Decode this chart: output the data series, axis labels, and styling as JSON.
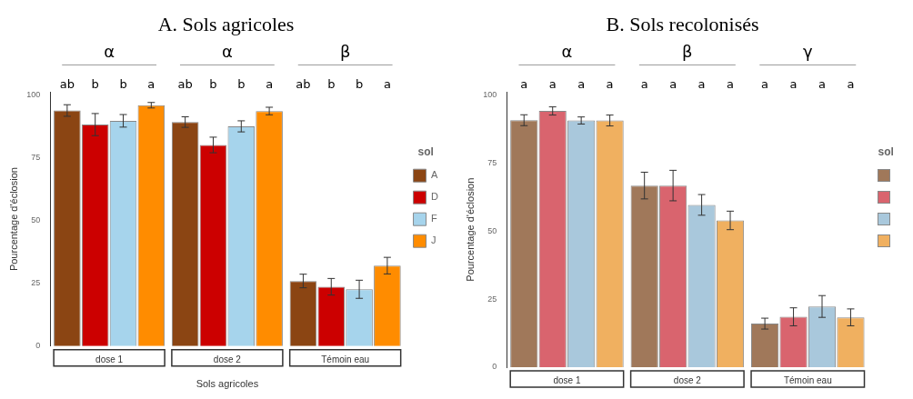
{
  "chart_data": [
    {
      "type": "bar",
      "title": "A. Sols agricoles",
      "xlabel": "Sols agricoles",
      "ylabel": "Pourcentage d'éclosion",
      "legend_title": "sol",
      "categories": [
        "dose 1",
        "dose 2",
        "Témoin eau"
      ],
      "series": [
        {
          "name": "A",
          "color": "#8b4513",
          "values": [
            93.7,
            89.1,
            25.9
          ],
          "errors": [
            2.3,
            2.1,
            2.7
          ]
        },
        {
          "name": "D",
          "color": "#cc0000",
          "values": [
            88.1,
            80.0,
            23.6
          ],
          "errors": [
            4.4,
            3.1,
            3.3
          ]
        },
        {
          "name": "F",
          "color": "#a6d4ec",
          "values": [
            89.6,
            87.4,
            22.6
          ],
          "errors": [
            2.5,
            2.2,
            3.6
          ]
        },
        {
          "name": "J",
          "color": "#ff8c00",
          "values": [
            95.8,
            93.5,
            32.0
          ],
          "errors": [
            1.1,
            1.5,
            3.3
          ]
        }
      ],
      "ylim": [
        0,
        101
      ],
      "yticks": [
        0,
        25,
        50,
        75,
        100
      ],
      "grid": false,
      "legend": "right",
      "annotations": [
        "α",
        "α",
        "β",
        "ab",
        "b",
        "b",
        "a",
        "ab",
        "b",
        "b",
        "a",
        "ab",
        "b",
        "b",
        "a"
      ]
    },
    {
      "type": "bar",
      "title": "B. Sols recolonisés",
      "ylabel": "Pourcentage d'éclosion",
      "legend_title": "sol",
      "categories": [
        "dose 1",
        "dose 2",
        "Témoin eau"
      ],
      "series": [
        {
          "color": "#a0785a",
          "values": [
            90.7,
            66.7,
            16.0
          ],
          "errors": [
            2.0,
            4.9,
            2.0
          ]
        },
        {
          "color": "#d9646e",
          "values": [
            94.1,
            66.7,
            18.5
          ],
          "errors": [
            1.5,
            5.6,
            3.3
          ]
        },
        {
          "color": "#a9c8dc",
          "values": [
            90.6,
            59.6,
            22.3
          ],
          "errors": [
            1.3,
            3.8,
            4.0
          ]
        },
        {
          "color": "#f0b060",
          "values": [
            90.6,
            53.9,
            18.3
          ],
          "errors": [
            2.0,
            3.4,
            3.1
          ]
        }
      ],
      "ylim": [
        0,
        101
      ],
      "yticks": [
        0,
        25,
        50,
        75,
        100
      ],
      "grid": false,
      "legend": "right",
      "annotations": [
        "α",
        "β",
        "γ",
        "a",
        "a",
        "a",
        "a",
        "a",
        "a",
        "a",
        "a",
        "a",
        "a",
        "a",
        "a"
      ]
    }
  ]
}
